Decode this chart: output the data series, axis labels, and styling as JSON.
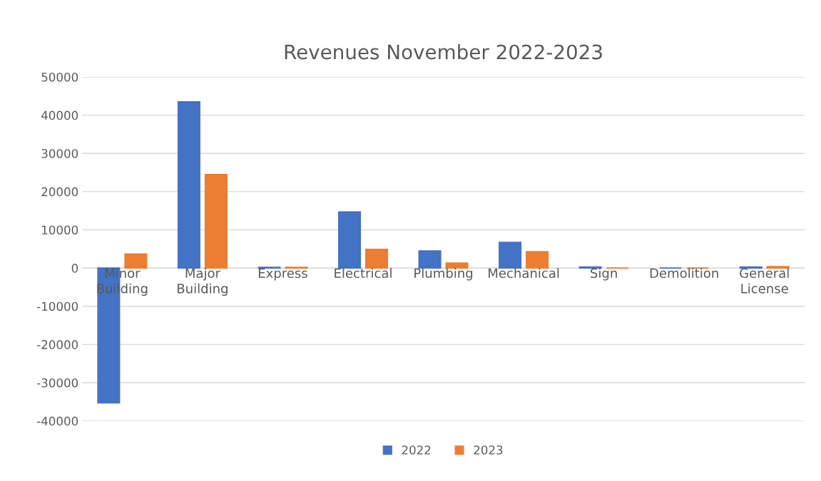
{
  "chart_data": {
    "type": "bar",
    "title": "Revenues November 2022-2023",
    "categories": [
      "Minor\nBuilding",
      "Major\nBuilding",
      "Express",
      "Electrical",
      "Plumbing",
      "Mechanical",
      "Sign",
      "Demolition",
      "General\nLicense"
    ],
    "series": [
      {
        "name": "2022",
        "color": "#4472c4",
        "values": [
          -35300,
          43500,
          200,
          14700,
          4500,
          6700,
          300,
          0,
          300
        ]
      },
      {
        "name": "2023",
        "color": "#ed7d31",
        "values": [
          3700,
          24500,
          200,
          4900,
          1300,
          4300,
          0,
          0,
          400
        ]
      }
    ],
    "ylim": [
      -40000,
      50000
    ],
    "yticks": [
      -40000,
      -30000,
      -20000,
      -10000,
      0,
      10000,
      20000,
      30000,
      40000,
      50000
    ],
    "grid": "y",
    "legend": "bottom"
  }
}
